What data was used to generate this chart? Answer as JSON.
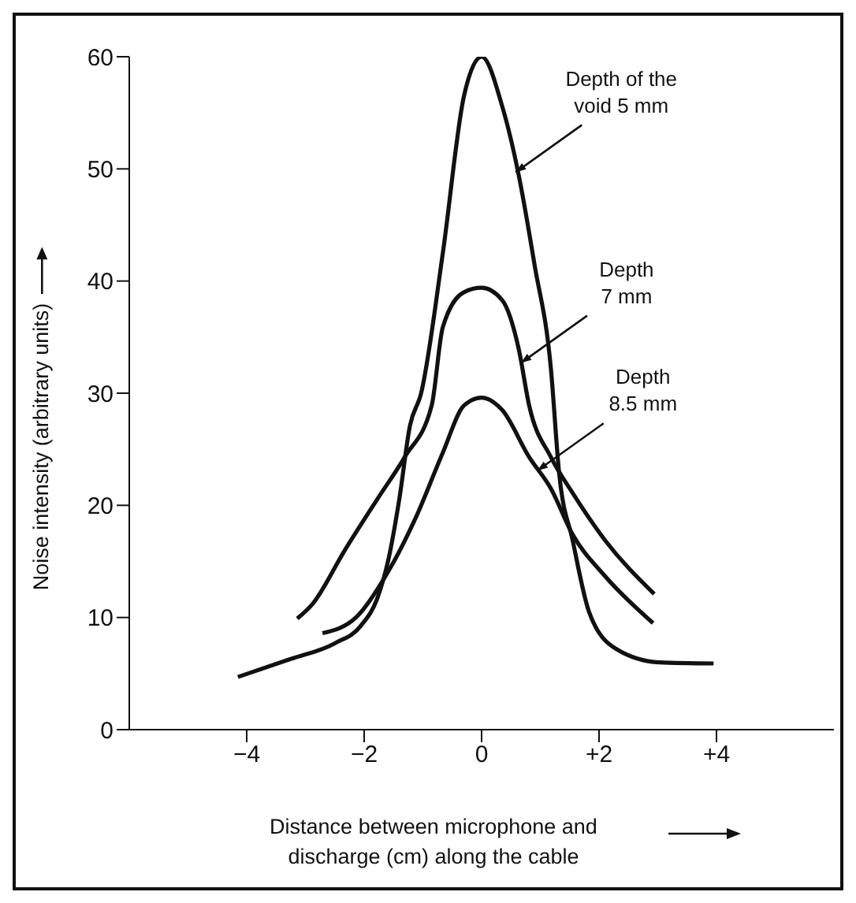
{
  "chart_data": {
    "type": "line",
    "xlabel": "Distance between microphone and\ndischarge (cm) along the cable",
    "ylabel": "Noise intensity (arbitrary units)",
    "xlim": [
      -6,
      6
    ],
    "xticks": [
      {
        "value": -4,
        "label": "−4"
      },
      {
        "value": -2,
        "label": "−2"
      },
      0,
      {
        "value": 2,
        "label": "+2"
      },
      {
        "value": 4,
        "label": "+4"
      }
    ],
    "ylim": [
      0,
      60
    ],
    "yticks": [
      0,
      10,
      20,
      30,
      40,
      50,
      60
    ],
    "grid": false,
    "legend": false,
    "marker": "none",
    "line_style": "solid",
    "series": [
      {
        "color": "#111111",
        "x": [
          -4.15,
          -3.25,
          -2.5,
          -2.05,
          -1.77,
          -1.59,
          -1.4,
          -1.22,
          -1.03,
          -0.66,
          -0.3,
          0,
          0.35,
          0.63,
          0.9,
          1.18,
          1.32,
          1.55,
          1.83,
          2.29,
          3.03,
          3.95
        ],
        "values": [
          4.7,
          6.3,
          7.7,
          9.3,
          11.8,
          15.1,
          20.6,
          27.1,
          30,
          42.5,
          56.5,
          60,
          55.6,
          49.5,
          41.5,
          32.2,
          22.9,
          16.9,
          10.5,
          7.2,
          6,
          5.9
        ]
      },
      {
        "color": "#111111",
        "x": [
          -3.14,
          -2.88,
          -2.33,
          -1.77,
          -1.31,
          -0.85,
          -0.66,
          -0.3,
          0,
          0.35,
          0.63,
          0.81,
          1.18,
          1.55,
          2.1,
          2.94
        ],
        "values": [
          9.9,
          11.2,
          16,
          20.6,
          24.3,
          28.9,
          35.9,
          39,
          39.4,
          38.3,
          34,
          28.9,
          24.3,
          21.1,
          16.9,
          12.1
        ]
      },
      {
        "color": "#111111",
        "x": [
          -2.71,
          -2.14,
          -1.59,
          -1.13,
          -0.66,
          -0.3,
          0,
          0.35,
          0.81,
          1.18,
          1.55,
          2.1,
          2.92
        ],
        "values": [
          8.6,
          10,
          14.1,
          18.8,
          24.7,
          28.9,
          29.6,
          28.5,
          24.3,
          21.5,
          17.4,
          13.7,
          9.5
        ]
      }
    ],
    "annotations": [
      {
        "text": "Depth of the\nvoid 5 mm",
        "x": 0.58,
        "y": 49.7
      },
      {
        "text": "Depth\n7 mm",
        "x": 0.67,
        "y": 32.7
      },
      {
        "text": "Depth\n8.5 mm",
        "x": 0.95,
        "y": 23.1
      }
    ]
  }
}
